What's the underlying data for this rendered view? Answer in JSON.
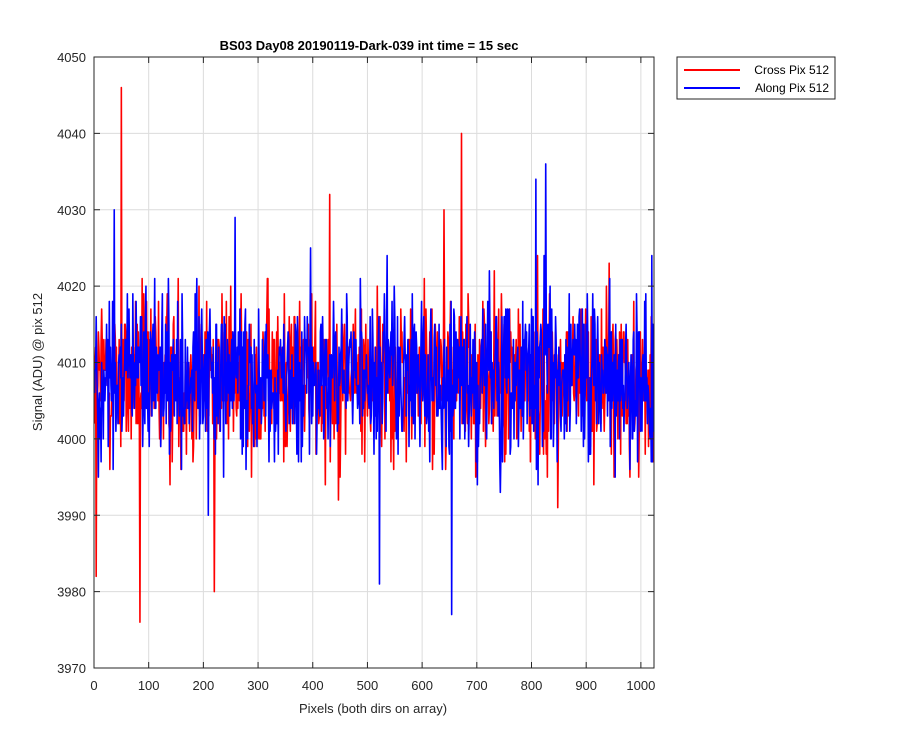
{
  "chart_data": {
    "type": "line",
    "title": "BS03 Day08 20190119-Dark-039 int time = 15 sec",
    "xlabel": "Pixels (both dirs on array)",
    "ylabel": "Signal (ADU) @ pix 512",
    "xlim": [
      0,
      1024
    ],
    "ylim": [
      3970,
      4050
    ],
    "xticks": [
      0,
      100,
      200,
      300,
      400,
      500,
      600,
      700,
      800,
      900,
      1000
    ],
    "yticks": [
      3970,
      3980,
      3990,
      4000,
      4010,
      4020,
      4030,
      4040,
      4050
    ],
    "grid": true,
    "legend_position": "outside-top-right",
    "series": [
      {
        "name": "Cross Pix 512",
        "color": "#ff0000",
        "x_start": 1,
        "x_step": 1,
        "baseline": 4008,
        "spread": 6,
        "extremes": [
          [
            50,
            4046
          ],
          [
            84,
            3976
          ],
          [
            672,
            4040
          ],
          [
            220,
            3980
          ],
          [
            4,
            3982
          ],
          [
            431,
            4032
          ],
          [
            640,
            4030
          ]
        ]
      },
      {
        "name": "Along Pix 512",
        "color": "#0000ff",
        "x_start": 1,
        "x_step": 1,
        "baseline": 4008,
        "spread": 6,
        "extremes": [
          [
            826,
            4036
          ],
          [
            808,
            4034
          ],
          [
            654,
            3977
          ],
          [
            522,
            3981
          ],
          [
            37,
            4030
          ],
          [
            258,
            4029
          ],
          [
            1020,
            4024
          ]
        ]
      }
    ]
  }
}
